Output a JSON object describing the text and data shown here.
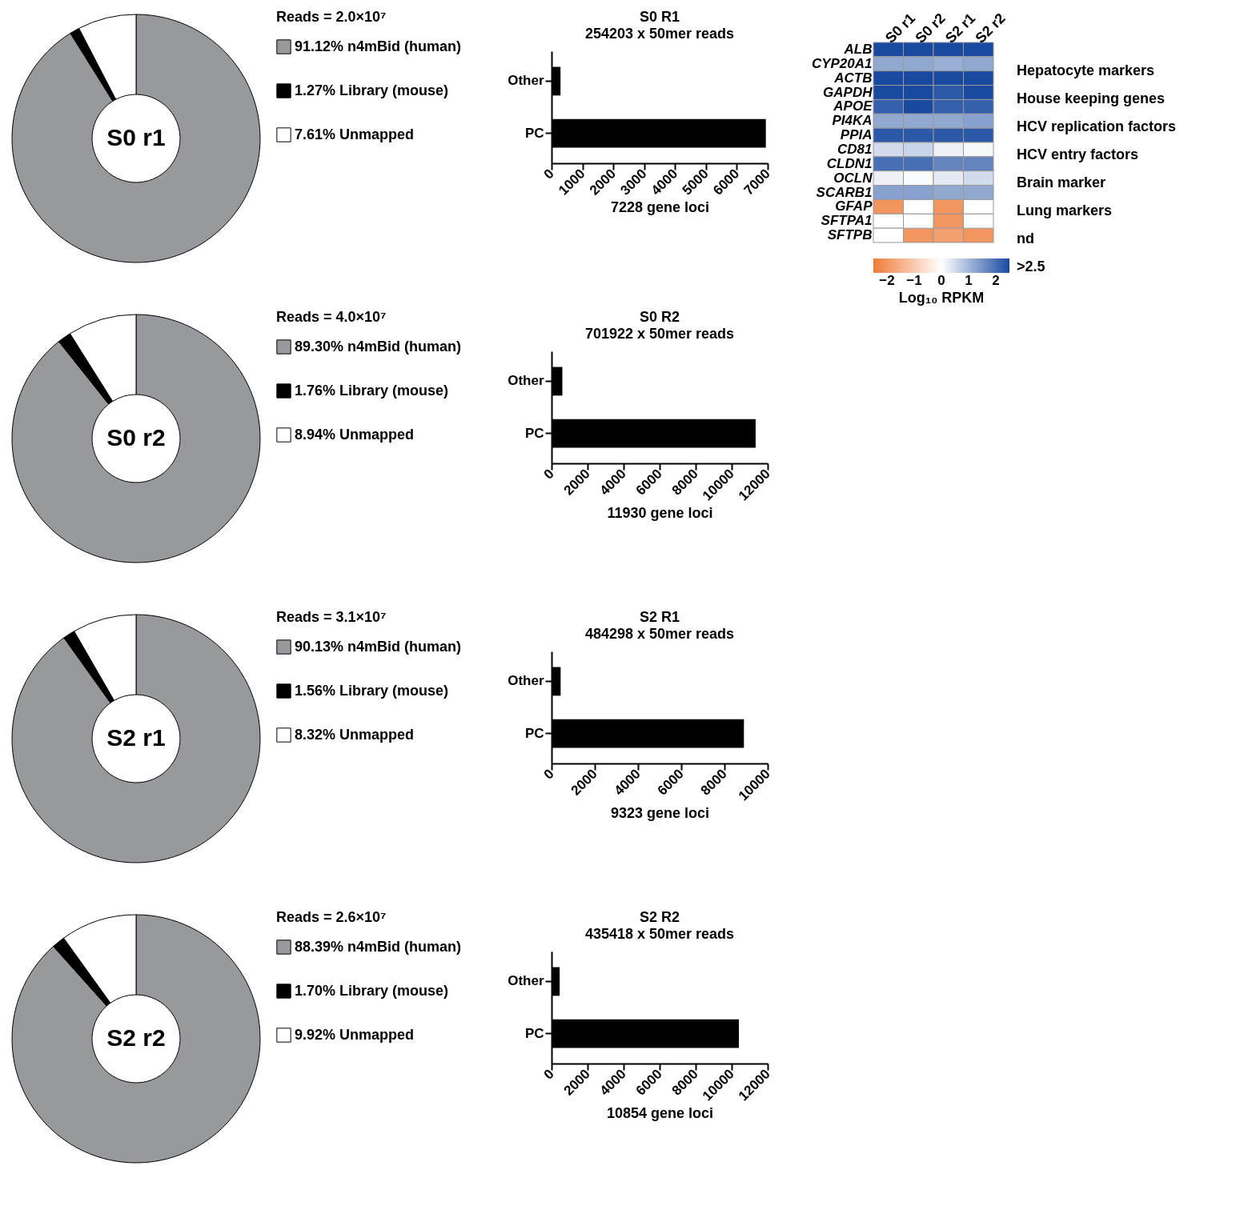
{
  "chart_data": [
    {
      "type": "donut",
      "title": "S0 r1",
      "legend_title": "Reads = 2.0×10⁷",
      "legend": "right",
      "categories": [
        "91.12%  n4mBid (human)",
        "1.27%  Library (mouse)",
        "7.61%  Unmapped"
      ],
      "values": [
        91.12,
        1.27,
        7.61
      ],
      "colors": [
        "#98999c",
        "#000000",
        "#ffffff"
      ]
    },
    {
      "type": "bar",
      "orientation": "horizontal",
      "title": "S0 R1",
      "subtitle": "254203 x 50mer reads",
      "xlabel": "7228 gene loci",
      "categories": [
        "Other",
        "PC"
      ],
      "values": [
        290,
        6940
      ],
      "color": "#000000",
      "xlim": [
        0,
        7000
      ],
      "xticks": [
        0,
        1000,
        2000,
        3000,
        4000,
        5000,
        6000,
        7000
      ]
    },
    {
      "type": "heatmap",
      "categories": [
        "S0 r1",
        "S0 r2",
        "S2 r1",
        "S2 r2"
      ],
      "y_categories": [
        "ALB",
        "CYP20A1",
        "ACTB",
        "GAPDH",
        "APOE",
        "PI4KA",
        "PPIA",
        "CD81",
        "CLDN1",
        "OCLN",
        "SCARB1",
        "GFAP",
        "SFTPA1",
        "SFTPB"
      ],
      "cells": [
        [
          2.5,
          2.5,
          2.5,
          2.5
        ],
        [
          1.2,
          1.2,
          1.1,
          1.2
        ],
        [
          2.5,
          2.5,
          2.5,
          2.5
        ],
        [
          2.5,
          2.5,
          2.3,
          2.5
        ],
        [
          2.2,
          2.5,
          2.2,
          2.2
        ],
        [
          1.2,
          1.2,
          1.2,
          1.3
        ],
        [
          2.3,
          2.3,
          2.3,
          2.3
        ],
        [
          0.5,
          0.6,
          0.2,
          0.1
        ],
        [
          2.0,
          2.0,
          1.7,
          1.7
        ],
        [
          0.2,
          0.05,
          0.3,
          0.5
        ],
        [
          1.3,
          1.3,
          1.2,
          1.2
        ],
        [
          -2,
          null,
          -2,
          null
        ],
        [
          null,
          null,
          -2,
          null
        ],
        [
          null,
          -2,
          -1.8,
          -2
        ]
      ],
      "clim": [
        -2.5,
        2.5
      ],
      "cticks": [
        -2,
        -1,
        0,
        1,
        2
      ],
      "clabel": "Log₁₀ RPKM",
      "annotations": [
        "Hepatocyte markers",
        "House keeping genes",
        "HCV replication factors",
        "HCV entry factors",
        "Brain marker",
        "Lung markers",
        "nd",
        ">2.5"
      ]
    },
    {
      "type": "donut",
      "title": "S0 r2",
      "legend_title": "Reads = 4.0×10⁷",
      "legend": "right",
      "categories": [
        "89.30%  n4mBid (human)",
        "1.76%  Library (mouse)",
        "8.94%  Unmapped"
      ],
      "values": [
        89.3,
        1.76,
        8.94
      ],
      "colors": [
        "#98999c",
        "#000000",
        "#ffffff"
      ]
    },
    {
      "type": "bar",
      "orientation": "horizontal",
      "title": "S0 R2",
      "subtitle": "701922 x 50mer reads",
      "xlabel": "11930 gene loci",
      "categories": [
        "Other",
        "PC"
      ],
      "values": [
        600,
        11330
      ],
      "color": "#000000",
      "xlim": [
        0,
        12000
      ],
      "xticks": [
        0,
        2000,
        4000,
        6000,
        8000,
        10000,
        12000
      ]
    },
    {
      "type": "donut",
      "title": "S2 r1",
      "legend_title": "Reads = 3.1×10⁷",
      "legend": "right",
      "categories": [
        "90.13%  n4mBid (human)",
        "1.56%  Library (mouse)",
        "8.32%  Unmapped"
      ],
      "values": [
        90.13,
        1.56,
        8.32
      ],
      "colors": [
        "#98999c",
        "#000000",
        "#ffffff"
      ]
    },
    {
      "type": "bar",
      "orientation": "horizontal",
      "title": "S2 R1",
      "subtitle": "484298 x 50mer reads",
      "xlabel": "9323 gene loci",
      "categories": [
        "Other",
        "PC"
      ],
      "values": [
        420,
        8900
      ],
      "color": "#000000",
      "xlim": [
        0,
        10000
      ],
      "xticks": [
        0,
        2000,
        4000,
        6000,
        8000,
        10000
      ]
    },
    {
      "type": "donut",
      "title": "S2 r2",
      "legend_title": "Reads = 2.6×10⁷",
      "legend": "right",
      "categories": [
        "88.39%  n4mBid (human)",
        "1.70%  Library (mouse)",
        "9.92%  Unmapped"
      ],
      "values": [
        88.39,
        1.7,
        9.92
      ],
      "colors": [
        "#98999c",
        "#000000",
        "#ffffff"
      ]
    },
    {
      "type": "bar",
      "orientation": "horizontal",
      "title": "S2 R2",
      "subtitle": "435418 x 50mer reads",
      "xlabel": "10854 gene loci",
      "categories": [
        "Other",
        "PC"
      ],
      "values": [
        450,
        10400
      ],
      "color": "#000000",
      "xlim": [
        0,
        12000
      ],
      "xticks": [
        0,
        2000,
        4000,
        6000,
        8000,
        10000,
        12000
      ]
    }
  ]
}
